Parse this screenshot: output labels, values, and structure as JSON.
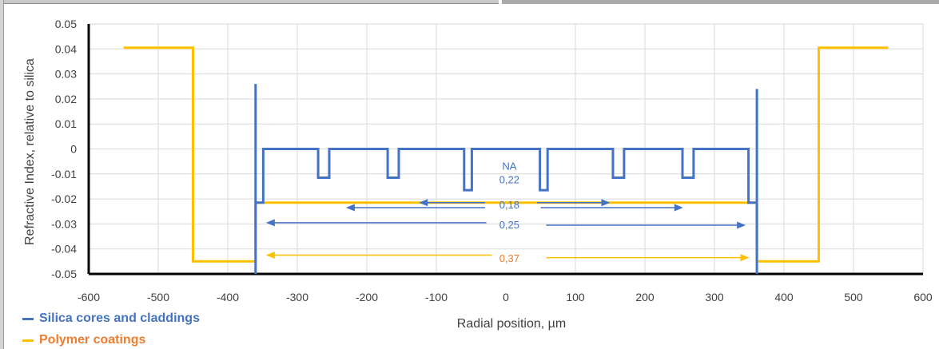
{
  "chart_data": {
    "type": "line",
    "title": "",
    "xlabel": "Radial position, µm",
    "ylabel": "Refractive Index, relative to silica",
    "xlim": [
      -600,
      600
    ],
    "ylim": [
      -0.05,
      0.05
    ],
    "x_ticks": [
      "-600",
      "-500",
      "-400",
      "-300",
      "-200",
      "-100",
      "0",
      "100",
      "200",
      "300",
      "400",
      "500",
      "600"
    ],
    "y_ticks": [
      "0.05",
      "0.04",
      "0.03",
      "0.02",
      "0.01",
      "0",
      "-0.01",
      "-0.02",
      "-0.03",
      "-0.04",
      "-0.05"
    ],
    "grid": true,
    "legend_position": "bottom-left",
    "series": [
      {
        "name": "Silica cores and claddings",
        "color": "#4472c4",
        "x": [
          -360,
          -360,
          -360,
          -354,
          -354,
          -349,
          -349,
          -270,
          -270,
          -254,
          -254,
          -170,
          -170,
          -154,
          -154,
          -60,
          -60,
          -49,
          -49,
          49,
          49,
          60,
          60,
          154,
          154,
          170,
          170,
          254,
          254,
          270,
          270,
          349,
          349,
          354,
          354,
          361,
          361,
          361
        ],
        "y": [
          -0.05,
          0.026,
          -0.0215,
          -0.0215,
          -0.0215,
          -0.0215,
          0,
          0,
          -0.0115,
          -0.0115,
          0,
          0,
          -0.0115,
          -0.0115,
          0,
          0,
          -0.0165,
          -0.0165,
          0,
          0,
          -0.0165,
          -0.0165,
          0,
          0,
          -0.0115,
          -0.0115,
          0,
          0,
          -0.0115,
          -0.0115,
          0,
          0,
          -0.0215,
          -0.0215,
          -0.0215,
          -0.0215,
          0.024,
          -0.05
        ]
      },
      {
        "name": "Polymer coatings",
        "color": "#ffc000",
        "x": [
          -550,
          -450,
          -450,
          -360,
          -360,
          -360,
          361,
          361,
          361,
          450,
          450,
          550
        ],
        "y": [
          0.0405,
          0.0405,
          -0.045,
          -0.045,
          -0.0215,
          -0.0215,
          -0.0215,
          -0.0215,
          -0.045,
          -0.045,
          0.0405,
          0.0405
        ]
      }
    ],
    "annotations": [
      {
        "text": "NA",
        "x": 5,
        "y": -0.007,
        "color": "#4472c4"
      },
      {
        "text": "0,22",
        "x": 5,
        "y": -0.0125,
        "color": "#4472c4"
      },
      {
        "text": "0,18",
        "x": 5,
        "y": -0.0225,
        "color": "#4472c4"
      },
      {
        "text": "0,25",
        "x": 5,
        "y": -0.0305,
        "color": "#4472c4"
      },
      {
        "text": "0,37",
        "x": 5,
        "y": -0.044,
        "color": "#ed7d31"
      }
    ],
    "arrows": [
      {
        "label": "0,22",
        "direction": "left",
        "from": -30,
        "to": -125,
        "y": -0.0215,
        "color": "#4472c4"
      },
      {
        "label": "0,22",
        "direction": "right",
        "from": 45,
        "to": 150,
        "y": -0.0215,
        "color": "#4472c4"
      },
      {
        "label": "0,18",
        "direction": "left",
        "from": -30,
        "to": -230,
        "y": -0.0235,
        "color": "#4472c4"
      },
      {
        "label": "0,18",
        "direction": "right",
        "from": 50,
        "to": 255,
        "y": -0.0235,
        "color": "#4472c4"
      },
      {
        "label": "0,25",
        "direction": "left",
        "from": -28,
        "to": -345,
        "y": -0.0295,
        "color": "#4472c4"
      },
      {
        "label": "0,25",
        "direction": "right",
        "from": 58,
        "to": 345,
        "y": -0.0305,
        "color": "#4472c4"
      },
      {
        "label": "0,37",
        "direction": "left",
        "from": -20,
        "to": -345,
        "y": -0.0425,
        "color": "#ffc000"
      },
      {
        "label": "0,37",
        "direction": "right",
        "from": 58,
        "to": 350,
        "y": -0.0435,
        "color": "#ffc000"
      }
    ]
  }
}
